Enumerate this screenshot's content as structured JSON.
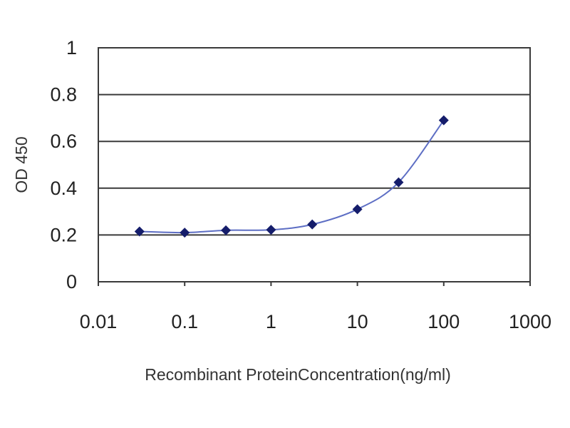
{
  "chart_data": {
    "type": "line",
    "title": "",
    "xlabel": "Recombinant ProteinConcentration(ng/ml)",
    "ylabel": "OD 450",
    "x_scale": "log",
    "xlim": [
      0.01,
      1000
    ],
    "ylim": [
      0,
      1
    ],
    "x_tick_labels": [
      "0.01",
      "0.1",
      "1",
      "10",
      "100",
      "1000"
    ],
    "y_tick_labels": [
      "0",
      "0.2",
      "0.4",
      "0.6",
      "0.8",
      "1"
    ],
    "grid": "horizontal",
    "legend": "none",
    "series": [
      {
        "x": [
          0.03,
          0.1,
          0.3,
          1,
          3,
          10,
          30,
          100
        ],
        "y": [
          0.215,
          0.21,
          0.22,
          0.222,
          0.245,
          0.31,
          0.425,
          0.69
        ],
        "color": "#1f2a7a",
        "marker": "diamond"
      }
    ],
    "colors": {
      "line": "#5d6ec4",
      "marker": "#151d6b",
      "grid": "#3a3a3a",
      "axis": "#3a3a3a"
    }
  }
}
